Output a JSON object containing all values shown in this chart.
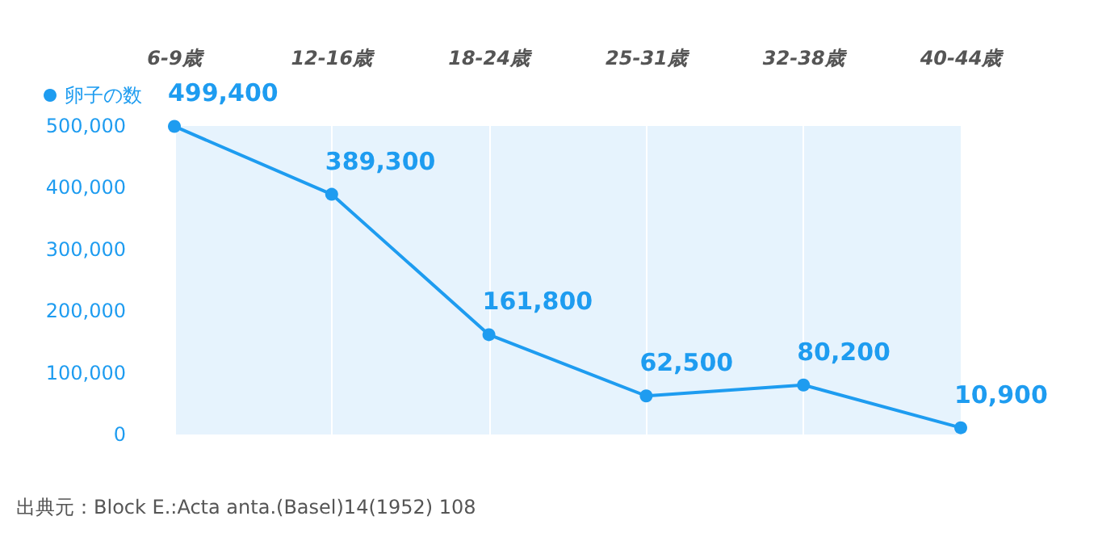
{
  "chart_data": {
    "type": "line",
    "categories": [
      "6-9歳",
      "12-16歳",
      "18-24歳",
      "25-31歳",
      "32-38歳",
      "40-44歳"
    ],
    "series": [
      {
        "name": "卵子の数",
        "color": "#1e9cf0",
        "values": [
          499400,
          389300,
          161800,
          62500,
          80200,
          10900
        ],
        "value_labels": [
          "499,400",
          "389,300",
          "161,800",
          "62,500",
          "80,200",
          "10,900"
        ]
      }
    ],
    "ylim": [
      0,
      500000
    ],
    "yticks": [
      0,
      {
        "value": 100000,
        "label": "100,000"
      },
      {
        "value": 200000,
        "label": "200,000"
      },
      {
        "value": 300000,
        "label": "300,000"
      },
      {
        "value": 400000,
        "label": "400,000"
      },
      {
        "value": 500000,
        "label": "500,000"
      }
    ],
    "grid": "x",
    "legend": "top left",
    "marker": "circle",
    "line_style": "solid",
    "annotations": [
      "出典元：Block E.:Acta anta.(Basel)14(1952) 108"
    ]
  }
}
